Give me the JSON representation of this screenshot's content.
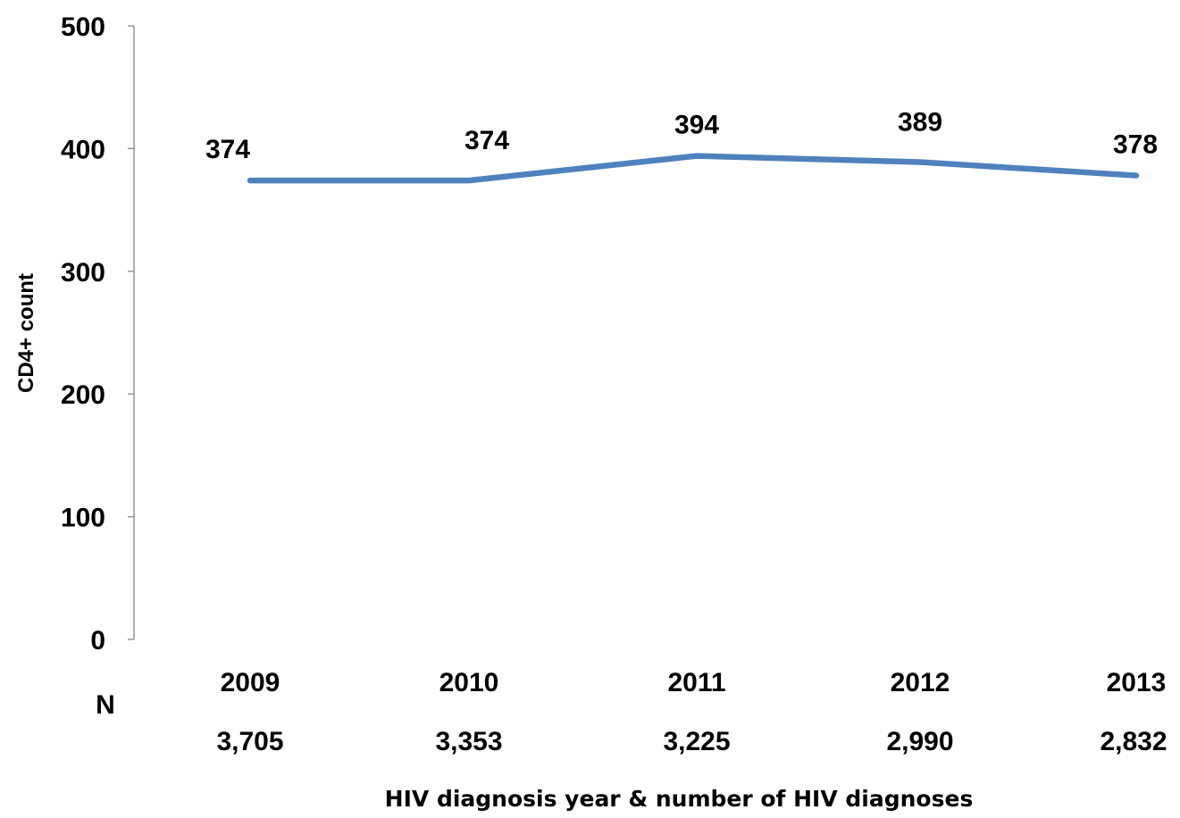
{
  "chart_data": {
    "type": "line",
    "title": "",
    "xlabel": "HIV diagnosis year & number of HIV diagnoses",
    "ylabel": "CD4+ count",
    "ylim": [
      0,
      500
    ],
    "yticks": [
      "0",
      "100",
      "200",
      "300",
      "400",
      "500"
    ],
    "categories": [
      "2009",
      "2010",
      "2011",
      "2012",
      "2013"
    ],
    "n_label": "N",
    "n_values": [
      "3,705",
      "3,353",
      "3,225",
      "2,990",
      "2,832"
    ],
    "series": [
      {
        "values": [
          374,
          374,
          394,
          389,
          378
        ],
        "data_labels": [
          "374",
          "374",
          "394",
          "389",
          "378"
        ],
        "color": "#4F81BD"
      }
    ],
    "grid": false,
    "legend": "none"
  }
}
